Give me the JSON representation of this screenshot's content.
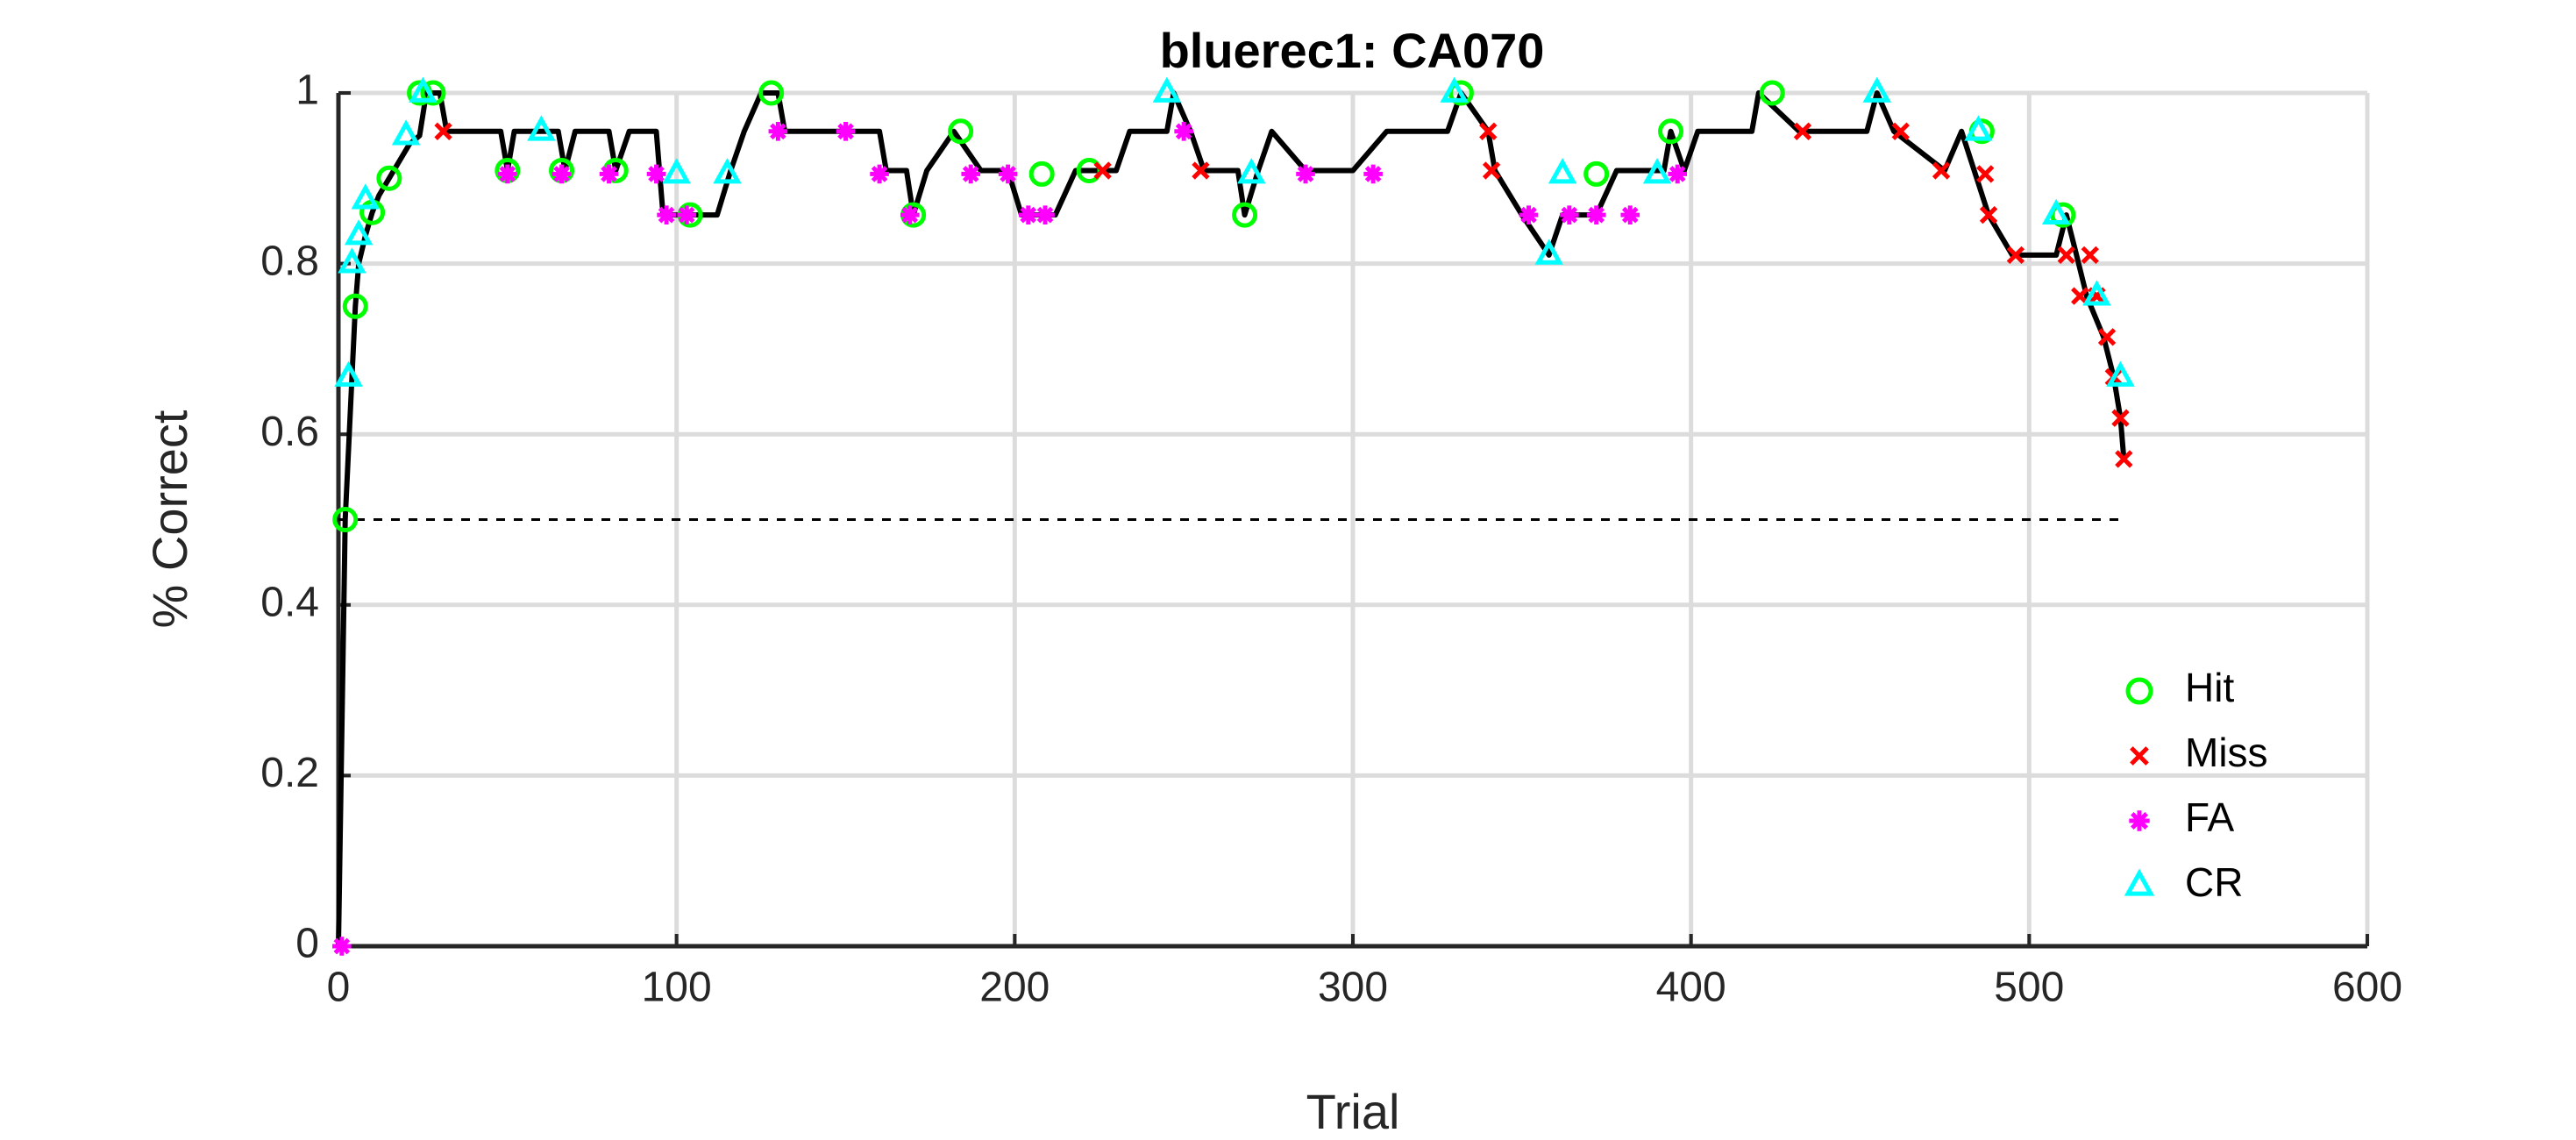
{
  "chart_data": {
    "type": "line",
    "title": "bluerec1: CA070",
    "x_label": "Trial",
    "y_label": "% Correct",
    "xlim": [
      0,
      600
    ],
    "ylim": [
      0,
      1
    ],
    "xticks": [
      0,
      100,
      200,
      300,
      400,
      500,
      600
    ],
    "yticks": [
      0,
      0.2,
      0.4,
      0.6,
      0.8,
      1
    ],
    "grid": true,
    "legend": "lower right",
    "trace": {
      "color": "#000000",
      "x": [
        0,
        2,
        4,
        5,
        6,
        8,
        10,
        12,
        15,
        18,
        21,
        24,
        26,
        30,
        32,
        48,
        50,
        52,
        65,
        67,
        70,
        80,
        82,
        86,
        94,
        96,
        112,
        116,
        120,
        125,
        130,
        132,
        160,
        162,
        168,
        170,
        174,
        182,
        190,
        198,
        202,
        212,
        218,
        230,
        234,
        245,
        247,
        252,
        256,
        266,
        268,
        272,
        276,
        286,
        300,
        310,
        328,
        332,
        340,
        342,
        350,
        358,
        362,
        372,
        378,
        392,
        394,
        398,
        402,
        418,
        420,
        432,
        452,
        455,
        460,
        475,
        480,
        488,
        495,
        508,
        511,
        514,
        517,
        522,
        525,
        527,
        528
      ],
      "values": [
        0,
        0.5,
        0.667,
        0.75,
        0.8,
        0.833,
        0.86,
        0.88,
        0.9,
        0.92,
        0.94,
        0.95,
        1,
        1,
        0.955,
        0.955,
        0.909,
        0.955,
        0.955,
        0.909,
        0.955,
        0.955,
        0.909,
        0.955,
        0.955,
        0.857,
        0.857,
        0.909,
        0.955,
        1,
        1,
        0.955,
        0.955,
        0.909,
        0.909,
        0.857,
        0.909,
        0.955,
        0.909,
        0.909,
        0.857,
        0.857,
        0.909,
        0.909,
        0.955,
        0.955,
        1,
        0.955,
        0.909,
        0.909,
        0.857,
        0.909,
        0.955,
        0.909,
        0.909,
        0.955,
        0.955,
        1,
        0.955,
        0.909,
        0.857,
        0.81,
        0.857,
        0.857,
        0.909,
        0.909,
        0.955,
        0.909,
        0.955,
        0.955,
        1,
        0.955,
        0.955,
        1,
        0.955,
        0.909,
        0.955,
        0.857,
        0.81,
        0.81,
        0.857,
        0.81,
        0.762,
        0.714,
        0.667,
        0.619,
        0.571
      ]
    },
    "chance_line": {
      "color": "#000000",
      "x": [
        0,
        528
      ],
      "values": [
        0.5,
        0.5
      ]
    },
    "series": [
      {
        "name": "Hit",
        "color": "#00ff00",
        "marker": "circle",
        "x": [
          2,
          5,
          10,
          15,
          24,
          28,
          50,
          66,
          82,
          104,
          128,
          170,
          184,
          208,
          222,
          268,
          332,
          372,
          394,
          424,
          486,
          510
        ],
        "values": [
          0.5,
          0.75,
          0.86,
          0.9,
          1,
          1,
          0.909,
          0.909,
          0.909,
          0.857,
          1,
          0.857,
          0.955,
          0.905,
          0.909,
          0.857,
          1,
          0.905,
          0.955,
          1,
          0.955,
          0.857
        ]
      },
      {
        "name": "Miss",
        "color": "#ff0000",
        "marker": "x",
        "x": [
          31,
          226,
          255,
          340,
          341,
          433,
          462,
          474,
          487,
          488,
          496,
          511,
          515,
          518,
          520,
          523,
          525,
          527,
          528
        ],
        "values": [
          0.955,
          0.909,
          0.909,
          0.955,
          0.909,
          0.955,
          0.955,
          0.909,
          0.905,
          0.857,
          0.81,
          0.81,
          0.762,
          0.81,
          0.762,
          0.714,
          0.667,
          0.619,
          0.571
        ]
      },
      {
        "name": "FA",
        "color": "#ff00ff",
        "marker": "star",
        "x": [
          1,
          50,
          66,
          80,
          94,
          97,
          103,
          130,
          150,
          160,
          169,
          187,
          198,
          204,
          209,
          250,
          286,
          306,
          352,
          364,
          372,
          382,
          396
        ],
        "values": [
          0,
          0.905,
          0.905,
          0.905,
          0.905,
          0.857,
          0.857,
          0.955,
          0.955,
          0.905,
          0.857,
          0.905,
          0.905,
          0.857,
          0.857,
          0.955,
          0.905,
          0.905,
          0.857,
          0.857,
          0.857,
          0.857,
          0.905
        ]
      },
      {
        "name": "CR",
        "color": "#00ffff",
        "marker": "triangle",
        "x": [
          3,
          4,
          6,
          8,
          20,
          25,
          60,
          100,
          115,
          245,
          270,
          330,
          358,
          362,
          390,
          455,
          485,
          508,
          520,
          527
        ],
        "values": [
          0.667,
          0.8,
          0.833,
          0.875,
          0.95,
          1,
          0.955,
          0.905,
          0.905,
          1,
          0.905,
          1,
          0.81,
          0.905,
          0.905,
          1,
          0.955,
          0.857,
          0.762,
          0.667
        ]
      }
    ]
  }
}
